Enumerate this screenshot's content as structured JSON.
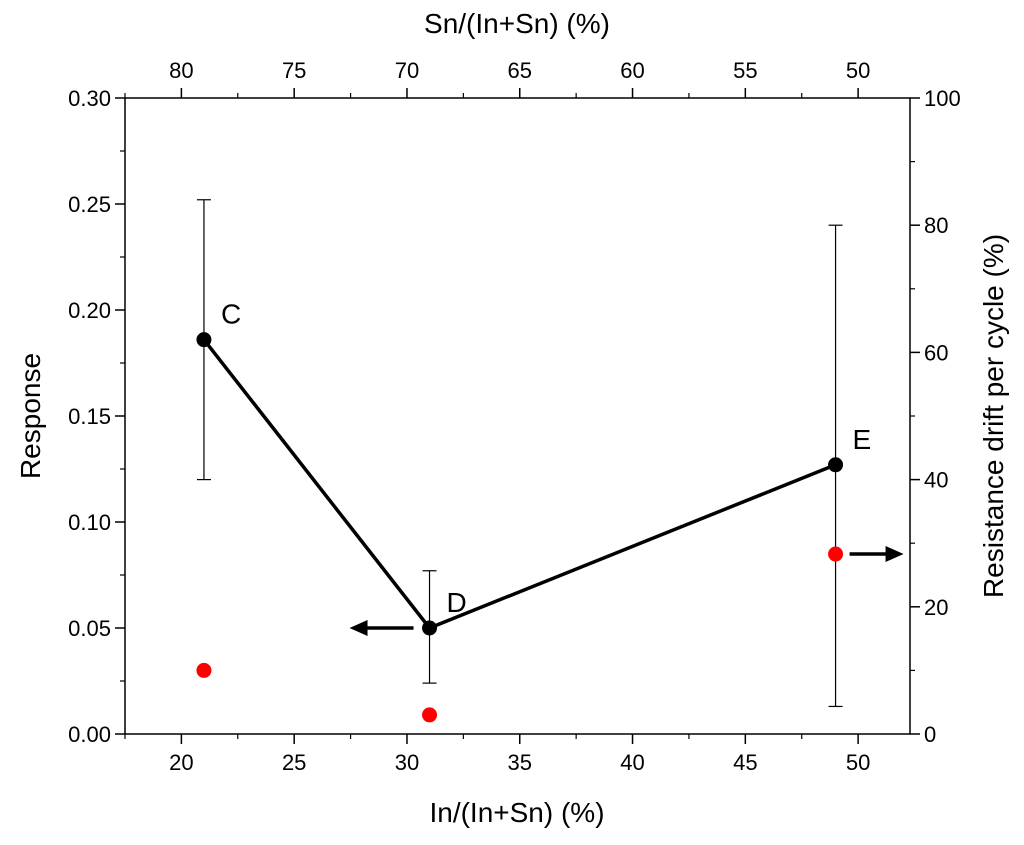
{
  "chart_data": {
    "type": "scatter",
    "title": "",
    "xlabel": "In/(In+Sn) (%)",
    "x2label": "Sn/(In+Sn) (%)",
    "ylabel": "Response",
    "y2label": "Resistance drift per cycle (%)",
    "xlim": [
      17.5,
      52.3
    ],
    "x2lim": [
      82.5,
      47.7
    ],
    "ylim": [
      0,
      0.3
    ],
    "y2lim": [
      0,
      100
    ],
    "x_ticks": [
      20,
      25,
      30,
      35,
      40,
      45,
      50
    ],
    "x2_ticks": [
      80,
      75,
      70,
      65,
      60,
      55,
      50
    ],
    "y_ticks": [
      "0.00",
      "0.05",
      "0.10",
      "0.15",
      "0.20",
      "0.25",
      "0.30"
    ],
    "y2_ticks": [
      0,
      20,
      40,
      60,
      80,
      100
    ],
    "grid": false,
    "series": [
      {
        "axis": "left",
        "color": "#000000",
        "style": "line+markers",
        "points": [
          {
            "x": 21,
            "y": 0.186,
            "err_low": 0.12,
            "err_high": 0.252,
            "label": "C"
          },
          {
            "x": 31,
            "y": 0.05,
            "err_low": 0.024,
            "err_high": 0.077,
            "label": "D"
          },
          {
            "x": 49,
            "y": 0.127,
            "err_low": 0.013,
            "err_high": 0.24,
            "label": "E"
          }
        ]
      },
      {
        "axis": "right",
        "color": "#ff0000",
        "style": "markers",
        "points": [
          {
            "x": 21,
            "y": 10
          },
          {
            "x": 31,
            "y": 3
          },
          {
            "x": 49,
            "y": 28.3
          }
        ]
      }
    ],
    "annotations": [
      {
        "type": "arrow",
        "direction": "left",
        "target_axis": "left"
      },
      {
        "type": "arrow",
        "direction": "right",
        "target_axis": "right"
      }
    ]
  }
}
